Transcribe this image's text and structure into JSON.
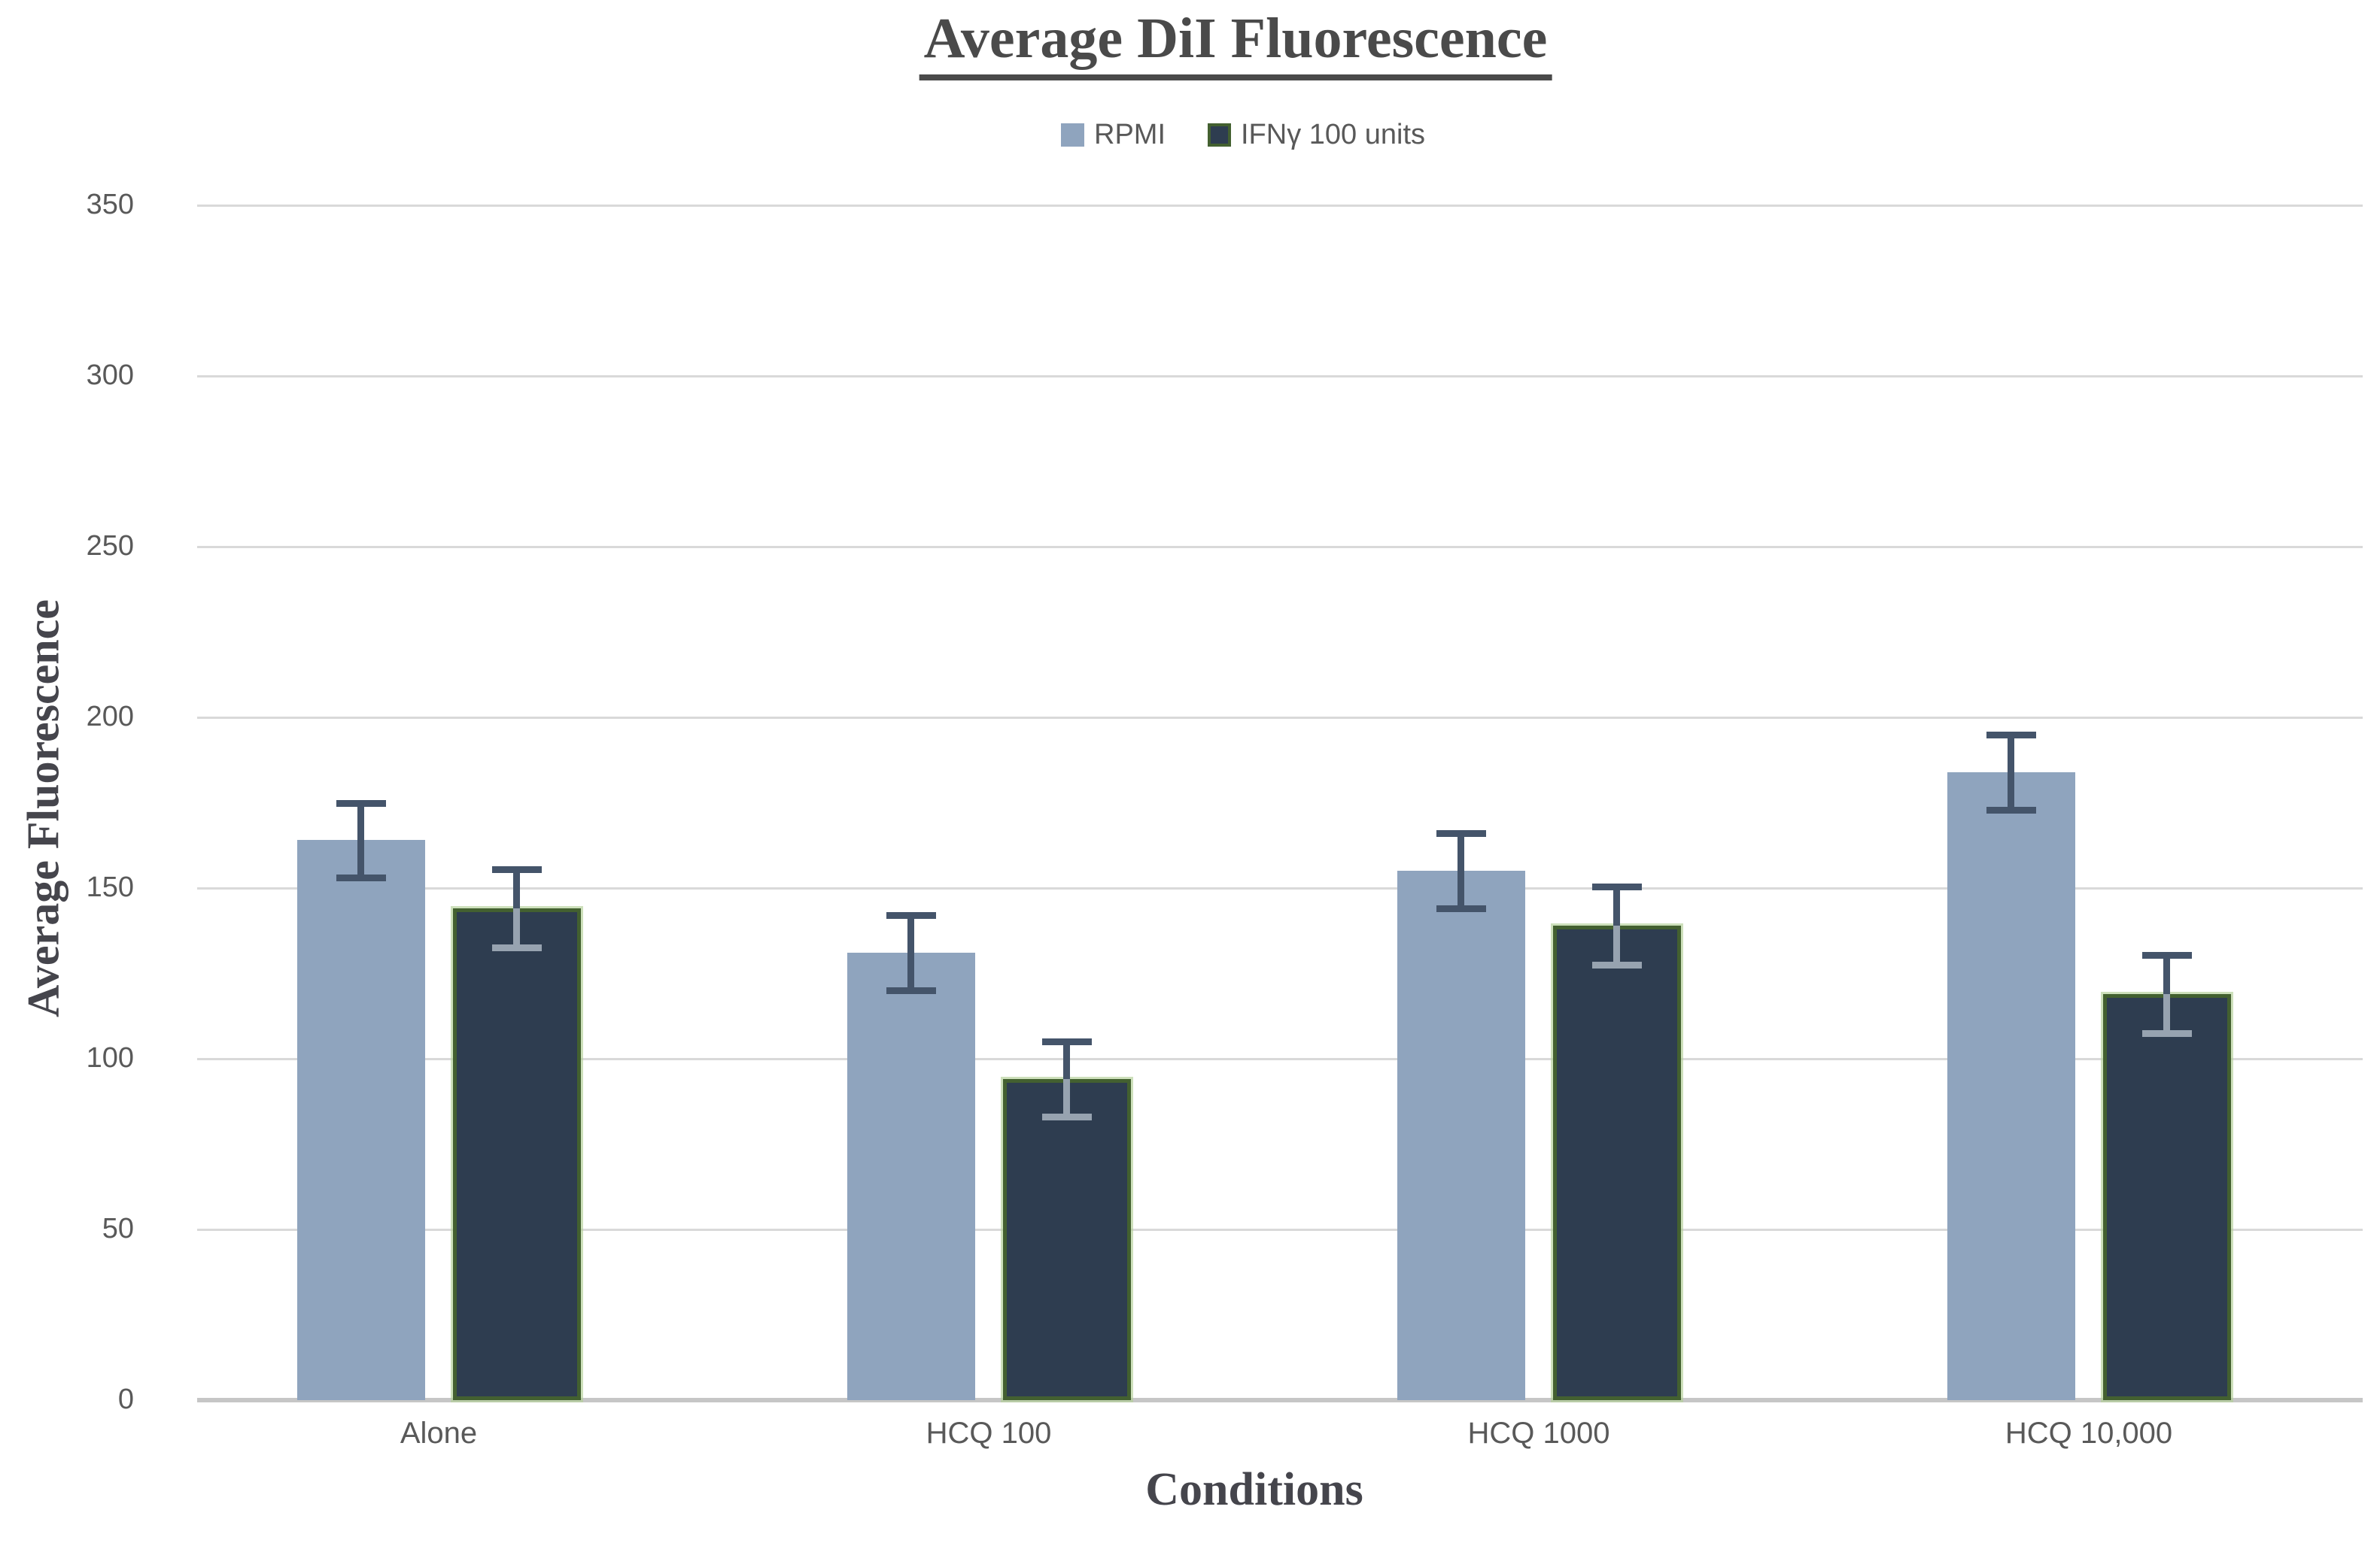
{
  "chart_data": {
    "type": "bar",
    "title": "Average DiI Fluorescence",
    "xlabel": "Conditions",
    "ylabel": "Average Fluorescence",
    "categories": [
      "Alone",
      "HCQ 100",
      "HCQ 1000",
      "HCQ 10,000"
    ],
    "series": [
      {
        "name": "RPMI",
        "color": "#8FA4BE",
        "values": [
          164,
          131,
          155,
          184
        ],
        "errors": [
          11,
          11,
          11,
          11
        ]
      },
      {
        "name": "IFNγ 100 units",
        "color": "#2E3D50",
        "border_color": "#436030",
        "halo_color": "rgba(178,208,150,0.65)",
        "values": [
          144,
          94,
          139,
          119
        ],
        "errors": [
          11.5,
          11,
          11.5,
          11.5
        ]
      }
    ],
    "ylim": [
      0,
      350
    ],
    "ytick_step": 50,
    "yticks": [
      0,
      50,
      100,
      150,
      200,
      250,
      300,
      350
    ],
    "grid": true,
    "legend_position": "top",
    "colors": {
      "gridline": "#d9d9d9",
      "axis_line": "#c6c6c6",
      "error_bar": "#44546A",
      "error_bar_on_dark": "#97A3B0",
      "tick_text": "#595959",
      "title_text": "#4a4a4a"
    }
  }
}
